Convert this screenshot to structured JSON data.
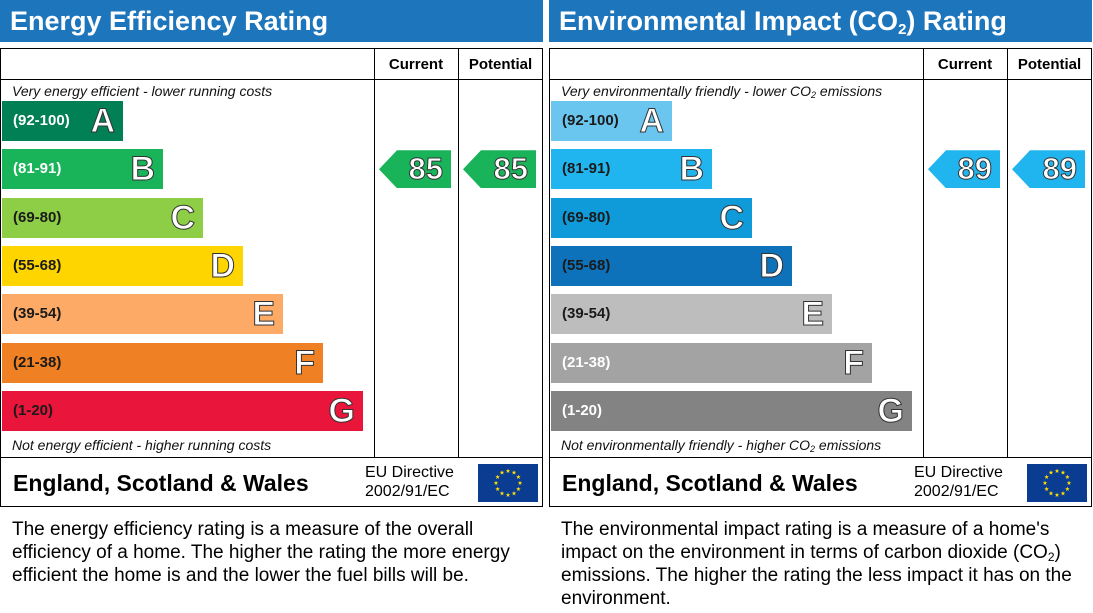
{
  "chart_data": [
    {
      "type": "bar",
      "title": "Energy Efficiency Rating",
      "columns": [
        "Current",
        "Potential"
      ],
      "top_note": "Very energy efficient - lower running costs",
      "bottom_note": "Not energy efficient - higher running costs",
      "categories": [
        "A",
        "B",
        "C",
        "D",
        "E",
        "F",
        "G"
      ],
      "bands": [
        {
          "range": "(92-100)",
          "letter": "A",
          "color": "#008054",
          "text_color": "#ffffff"
        },
        {
          "range": "(81-91)",
          "letter": "B",
          "color": "#19b459",
          "text_color": "#ffffff"
        },
        {
          "range": "(69-80)",
          "letter": "C",
          "color": "#8dce46",
          "text_color": "#1a1a1a"
        },
        {
          "range": "(55-68)",
          "letter": "D",
          "color": "#ffd500",
          "text_color": "#1a1a1a"
        },
        {
          "range": "(39-54)",
          "letter": "E",
          "color": "#fcaa65",
          "text_color": "#1a1a1a"
        },
        {
          "range": "(21-38)",
          "letter": "F",
          "color": "#ef8023",
          "text_color": "#1a1a1a"
        },
        {
          "range": "(1-20)",
          "letter": "G",
          "color": "#e9153b",
          "text_color": "#1a1a1a"
        }
      ],
      "current": 85,
      "potential": 85,
      "current_color": "#19b459",
      "potential_color": "#19b459",
      "footer_country": "England, Scotland & Wales",
      "footer_directive_line1": "EU Directive",
      "footer_directive_line2": "2002/91/EC",
      "description": "The energy efficiency rating is a measure of the overall efficiency of a home. The higher the rating the more energy efficient the home is and the lower the fuel bills will be."
    },
    {
      "type": "bar",
      "title_pre": "Environmental Impact (CO",
      "title_sub": "2",
      "title_post": ") Rating",
      "columns": [
        "Current",
        "Potential"
      ],
      "top_note_pre": "Very environmentally friendly - lower CO",
      "top_note_sub": "2",
      "top_note_post": " emissions",
      "bottom_note_pre": "Not environmentally friendly - higher CO",
      "bottom_note_sub": "2",
      "bottom_note_post": " emissions",
      "categories": [
        "A",
        "B",
        "C",
        "D",
        "E",
        "F",
        "G"
      ],
      "bands": [
        {
          "range": "(92-100)",
          "letter": "A",
          "color": "#6bc6ef",
          "text_color": "#1a1a1a"
        },
        {
          "range": "(81-91)",
          "letter": "B",
          "color": "#21b5ef",
          "text_color": "#1a1a1a"
        },
        {
          "range": "(69-80)",
          "letter": "C",
          "color": "#0f9ad9",
          "text_color": "#1a1a1a"
        },
        {
          "range": "(55-68)",
          "letter": "D",
          "color": "#0e72bb",
          "text_color": "#1a1a1a"
        },
        {
          "range": "(39-54)",
          "letter": "E",
          "color": "#bdbdbd",
          "text_color": "#1a1a1a"
        },
        {
          "range": "(21-38)",
          "letter": "F",
          "color": "#a3a3a3",
          "text_color": "#ffffff"
        },
        {
          "range": "(1-20)",
          "letter": "G",
          "color": "#838383",
          "text_color": "#ffffff"
        }
      ],
      "current": 89,
      "potential": 89,
      "current_color": "#21b5ef",
      "potential_color": "#21b5ef",
      "footer_country": "England, Scotland & Wales",
      "footer_directive_line1": "EU Directive",
      "footer_directive_line2": "2002/91/EC",
      "description_pre": "The environmental impact rating is a measure of a home's impact on the environment in terms of carbon dioxide (CO",
      "description_sub": "2",
      "description_post": ") emissions. The higher the rating the less impact it has on the environment."
    }
  ],
  "colors": {
    "header_blue": "#1d75bc",
    "eu_flag_blue": "#0a3d91",
    "eu_star_yellow": "#ffdd00"
  },
  "icons": {
    "eu_flag": "eu-flag-icon"
  }
}
